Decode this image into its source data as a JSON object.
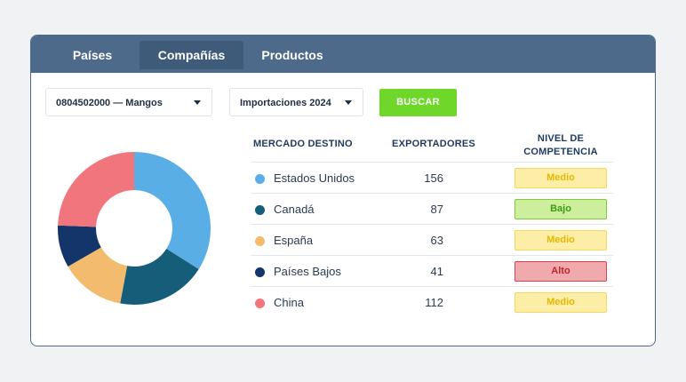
{
  "tabs": [
    {
      "label": "Países",
      "active": false
    },
    {
      "label": "Compañías",
      "active": true
    },
    {
      "label": "Productos",
      "active": false
    }
  ],
  "filters": {
    "product_select": "0804502000 — Mangos",
    "type_select": "Importaciones 2024",
    "search_button": "BUSCAR"
  },
  "table": {
    "headers": {
      "market": "MERCADO DESTINO",
      "exporters": "EXPORTADORES",
      "competition_line1": "NIVEL DE",
      "competition_line2": "COMPETENCIA"
    },
    "rows": [
      {
        "country": "Estados Unidos",
        "exporters": "156",
        "level": "Medio",
        "level_class": "medio",
        "color": "#5aaee6"
      },
      {
        "country": "Canadá",
        "exporters": "87",
        "level": "Bajo",
        "level_class": "bajo",
        "color": "#155d78"
      },
      {
        "country": "España",
        "exporters": "63",
        "level": "Medio",
        "level_class": "medio",
        "color": "#f2bb6e"
      },
      {
        "country": "Países Bajos",
        "exporters": "41",
        "level": "Alto",
        "level_class": "alto",
        "color": "#14356a"
      },
      {
        "country": "China",
        "exporters": "112",
        "level": "Medio",
        "level_class": "medio",
        "color": "#f1757d"
      }
    ]
  },
  "chart_data": {
    "type": "pie",
    "categories": [
      "Estados Unidos",
      "Canadá",
      "España",
      "Países Bajos",
      "China"
    ],
    "values": [
      156,
      87,
      63,
      41,
      112
    ],
    "colors": [
      "#5aaee6",
      "#155d78",
      "#f2bb6e",
      "#14356a",
      "#f1757d"
    ]
  }
}
